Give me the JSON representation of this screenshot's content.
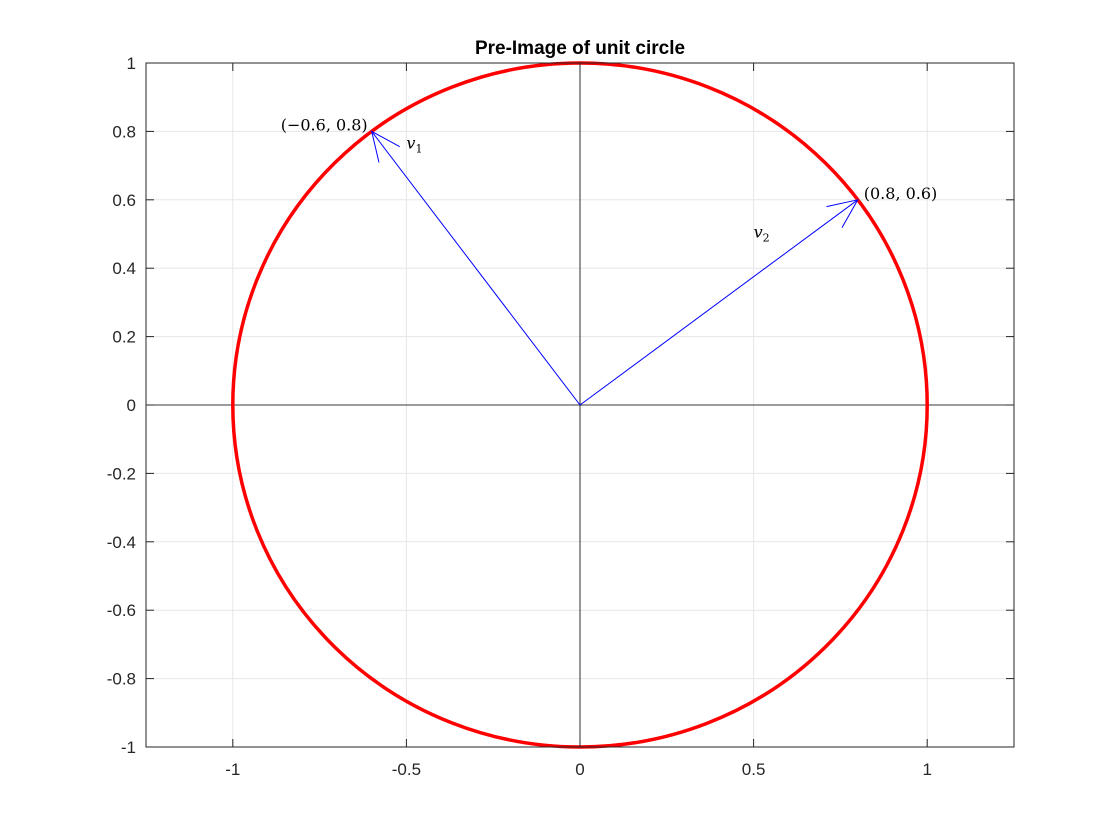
{
  "chart_data": {
    "type": "line",
    "title": "Pre-Image of unit circle",
    "xlabel": "",
    "ylabel": "",
    "xlim": [
      -1.25,
      1.25
    ],
    "ylim": [
      -1,
      1
    ],
    "x_ticks": [
      -1,
      -0.5,
      0,
      0.5,
      1
    ],
    "x_tick_labels": [
      "-1",
      "-0.5",
      "0",
      "0.5",
      "1"
    ],
    "y_ticks": [
      -1,
      -0.8,
      -0.6,
      -0.4,
      -0.2,
      0,
      0.2,
      0.4,
      0.6,
      0.8,
      1
    ],
    "y_tick_labels": [
      "-1",
      "-0.8",
      "-0.6",
      "-0.4",
      "-0.2",
      "0",
      "0.2",
      "0.4",
      "0.6",
      "0.8",
      "1"
    ],
    "grid": true,
    "box": true,
    "series": [
      {
        "kind": "circle",
        "center": [
          0,
          0
        ],
        "radius": 1,
        "color": "#ff0000"
      }
    ],
    "vectors": [
      {
        "from": [
          0,
          0
        ],
        "to": [
          -0.6,
          0.8
        ],
        "color": "#0000ff",
        "label": "v",
        "label_sub": "1",
        "label_pos": [
          -0.5,
          0.75
        ]
      },
      {
        "from": [
          0,
          0
        ],
        "to": [
          0.8,
          0.6
        ],
        "color": "#0000ff",
        "label": "v",
        "label_sub": "2",
        "label_pos": [
          0.5,
          0.49
        ]
      }
    ],
    "annotations": [
      {
        "text": "(−0.6, 0.8)",
        "x": -0.6,
        "y": 0.8,
        "anchor": "end"
      },
      {
        "text": "(0.8, 0.6)",
        "x": 0.8,
        "y": 0.6,
        "anchor": "start"
      }
    ],
    "axis_lines": true,
    "colors": {
      "grid": "#e6e6e6",
      "axis": "#262626",
      "zero_axes": "#000000"
    }
  }
}
